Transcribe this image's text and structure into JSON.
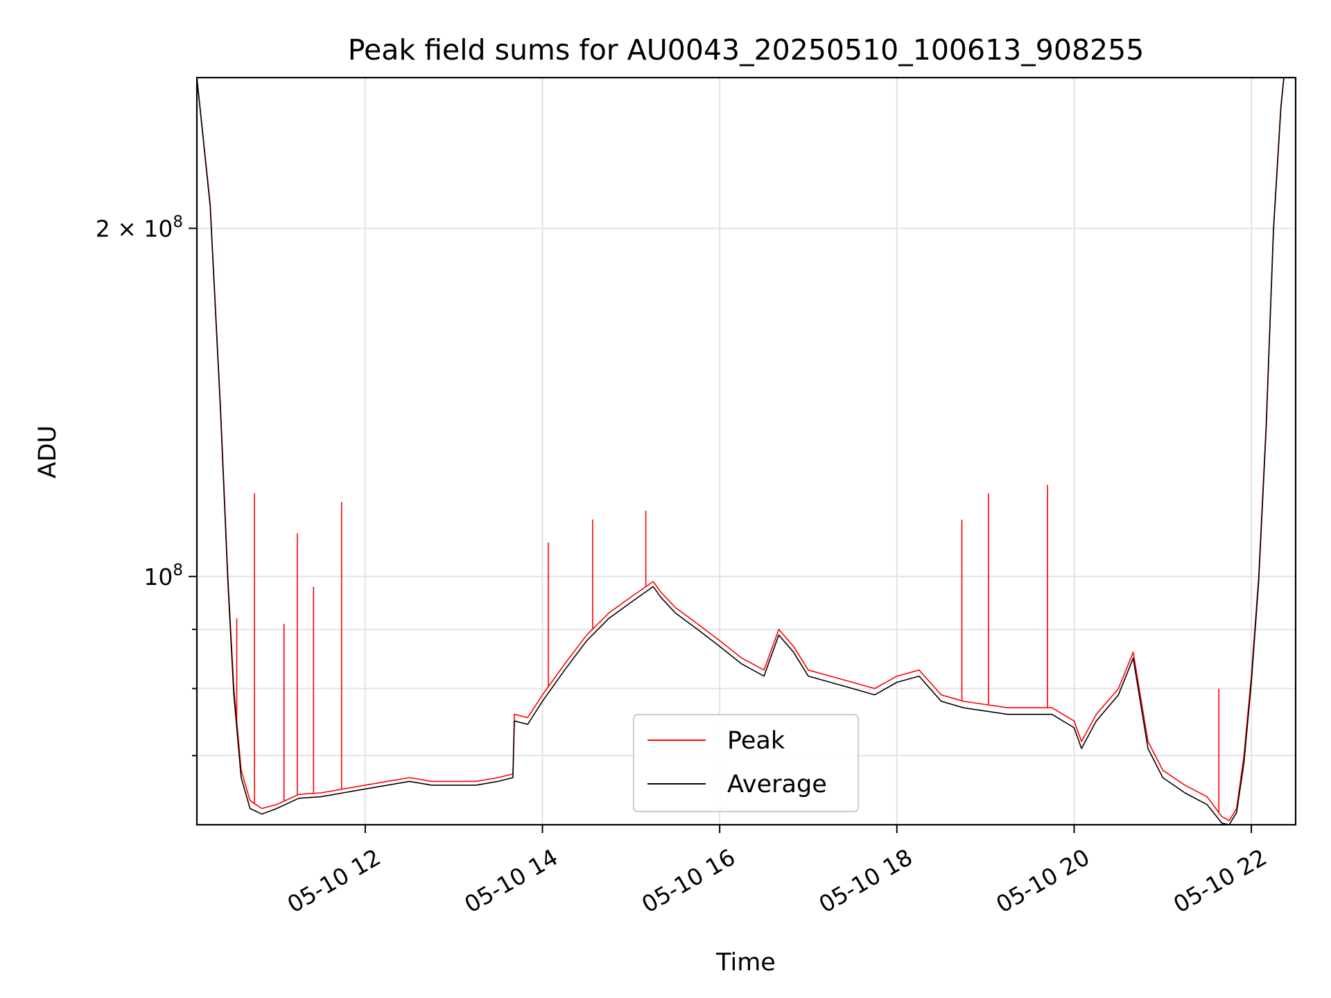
{
  "chart_data": {
    "type": "line",
    "title": "Peak field sums for AU0043_20250510_100613_908255",
    "xlabel": "Time",
    "ylabel": "ADU",
    "y_scale": "log",
    "xlim": [
      "2025-05-10 10:06",
      "2025-05-10 22:30"
    ],
    "ylim": [
      61000000,
      270000000
    ],
    "grid": true,
    "legend_position": "lower center",
    "x_ticks": [
      {
        "value": "2025-05-10 12:00",
        "label": "05-10 12"
      },
      {
        "value": "2025-05-10 14:00",
        "label": "05-10 14"
      },
      {
        "value": "2025-05-10 16:00",
        "label": "05-10 16"
      },
      {
        "value": "2025-05-10 18:00",
        "label": "05-10 18"
      },
      {
        "value": "2025-05-10 20:00",
        "label": "05-10 20"
      },
      {
        "value": "2025-05-10 22:00",
        "label": "05-10 22"
      }
    ],
    "y_ticks": [
      {
        "value": 200000000,
        "label": "2 × 10",
        "exp": "8"
      },
      {
        "value": 100000000,
        "label": "10",
        "exp": "8"
      }
    ],
    "y_minor_ticks": [
      60000000,
      70000000,
      80000000,
      90000000
    ],
    "series": [
      {
        "name": "Peak",
        "color": "#ff0000",
        "x": [
          "10:06",
          "10:15",
          "10:22",
          "10:27",
          "10:31",
          "10:36",
          "10:42",
          "10:50",
          "11:00",
          "11:15",
          "11:30",
          "11:45",
          "12:00",
          "12:15",
          "12:30",
          "12:45",
          "13:00",
          "13:15",
          "13:30",
          "13:40",
          "13:41",
          "13:50",
          "14:00",
          "14:15",
          "14:30",
          "14:45",
          "15:00",
          "15:15",
          "15:20",
          "15:30",
          "15:45",
          "16:00",
          "16:15",
          "16:30",
          "16:40",
          "16:50",
          "17:00",
          "17:15",
          "17:30",
          "17:45",
          "18:00",
          "18:15",
          "18:30",
          "18:45",
          "19:00",
          "19:15",
          "19:30",
          "19:45",
          "20:00",
          "20:05",
          "20:15",
          "20:30",
          "20:40",
          "20:50",
          "21:00",
          "21:15",
          "21:30",
          "21:40",
          "21:45",
          "21:50",
          "21:55",
          "22:00",
          "22:05",
          "22:10",
          "22:15",
          "22:20",
          "22:22"
        ],
        "y": [
          270000000,
          210000000,
          140000000,
          100000000,
          80000000,
          68000000,
          64000000,
          63000000,
          63500000,
          64800000,
          65000000,
          65500000,
          66000000,
          66500000,
          67000000,
          66500000,
          66500000,
          66500000,
          67000000,
          67500000,
          76000000,
          75500000,
          79000000,
          84000000,
          89000000,
          93000000,
          96000000,
          99000000,
          97000000,
          94000000,
          91000000,
          88000000,
          85000000,
          83000000,
          90000000,
          87000000,
          83000000,
          82000000,
          81000000,
          80000000,
          82000000,
          83000000,
          79000000,
          78000000,
          77500000,
          77000000,
          77000000,
          77000000,
          75000000,
          72000000,
          76000000,
          80000000,
          86000000,
          72000000,
          68000000,
          66000000,
          64500000,
          62000000,
          61500000,
          63000000,
          70000000,
          82000000,
          100000000,
          135000000,
          200000000,
          255000000,
          270000000
        ],
        "spikes": [
          {
            "x": "10:33",
            "y": 92000000
          },
          {
            "x": "10:45",
            "y": 118000000
          },
          {
            "x": "11:05",
            "y": 91000000
          },
          {
            "x": "11:14",
            "y": 109000000
          },
          {
            "x": "11:25",
            "y": 98000000
          },
          {
            "x": "11:44",
            "y": 116000000
          },
          {
            "x": "14:04",
            "y": 107000000
          },
          {
            "x": "14:34",
            "y": 112000000
          },
          {
            "x": "15:10",
            "y": 114000000
          },
          {
            "x": "18:44",
            "y": 112000000
          },
          {
            "x": "19:02",
            "y": 118000000
          },
          {
            "x": "19:42",
            "y": 120000000
          },
          {
            "x": "21:38",
            "y": 80000000
          }
        ]
      },
      {
        "name": "Average",
        "color": "#000000",
        "x": [
          "10:06",
          "10:15",
          "10:22",
          "10:27",
          "10:31",
          "10:36",
          "10:42",
          "10:50",
          "11:00",
          "11:15",
          "11:30",
          "11:45",
          "12:00",
          "12:15",
          "12:30",
          "12:45",
          "13:00",
          "13:15",
          "13:30",
          "13:40",
          "13:41",
          "13:50",
          "14:00",
          "14:15",
          "14:30",
          "14:45",
          "15:00",
          "15:15",
          "15:20",
          "15:30",
          "15:45",
          "16:00",
          "16:15",
          "16:30",
          "16:40",
          "16:50",
          "17:00",
          "17:15",
          "17:30",
          "17:45",
          "18:00",
          "18:15",
          "18:30",
          "18:45",
          "19:00",
          "19:15",
          "19:30",
          "19:45",
          "20:00",
          "20:05",
          "20:15",
          "20:30",
          "20:40",
          "20:50",
          "21:00",
          "21:15",
          "21:30",
          "21:40",
          "21:45",
          "21:50",
          "21:55",
          "22:00",
          "22:05",
          "22:10",
          "22:15",
          "22:20",
          "22:22"
        ],
        "y": [
          270000000,
          209000000,
          139000000,
          99000000,
          79000000,
          67000000,
          63000000,
          62300000,
          63000000,
          64300000,
          64500000,
          65000000,
          65500000,
          66000000,
          66500000,
          66000000,
          66000000,
          66000000,
          66500000,
          67000000,
          75000000,
          74500000,
          78000000,
          83000000,
          88000000,
          92000000,
          95000000,
          98000000,
          96000000,
          93000000,
          90000000,
          87000000,
          84000000,
          82000000,
          89000000,
          86000000,
          82000000,
          81000000,
          80000000,
          79000000,
          81000000,
          82000000,
          78000000,
          77000000,
          76500000,
          76000000,
          76000000,
          76000000,
          74000000,
          71000000,
          75000000,
          79000000,
          85000000,
          71000000,
          67000000,
          65000000,
          63500000,
          61200000,
          61000000,
          62500000,
          69000000,
          81000000,
          99000000,
          134000000,
          199000000,
          254000000,
          270000000
        ]
      }
    ]
  }
}
